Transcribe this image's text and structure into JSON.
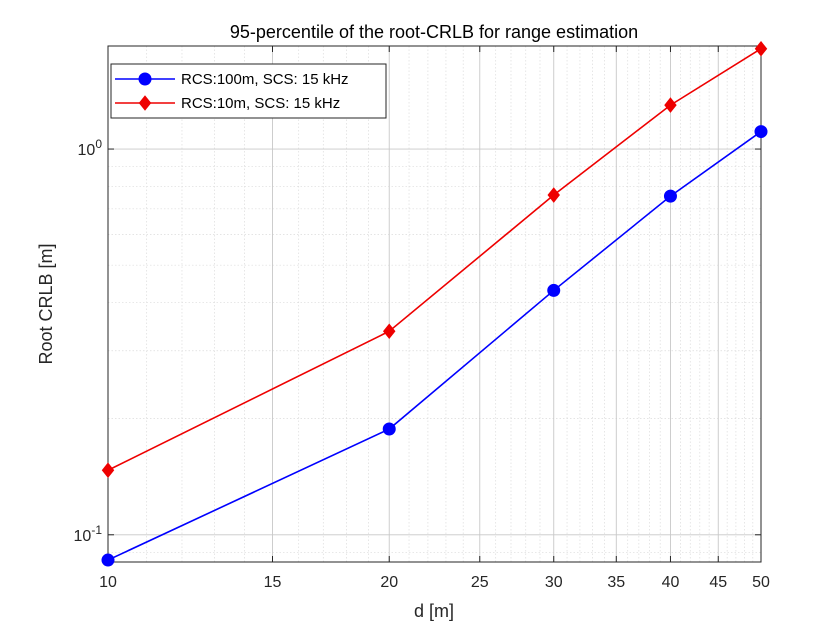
{
  "chart_data": {
    "type": "line",
    "title": "95-percentile of the root-CRLB for range estimation",
    "xlabel": "d [m]",
    "ylabel": "Root CRLB [m]",
    "xscale": "log",
    "yscale": "log",
    "xlim": [
      10,
      50
    ],
    "ylim": [
      0.085,
      1.85
    ],
    "x_ticks": [
      10,
      15,
      20,
      25,
      30,
      35,
      40,
      45,
      50
    ],
    "x_tick_labels": [
      "10",
      "15",
      "20",
      "25",
      "30",
      "35",
      "40",
      "45",
      "50"
    ],
    "y_ticks": [
      {
        "value": 0.1,
        "base": "10",
        "exp": "-1"
      },
      {
        "value": 1,
        "base": "10",
        "exp": "0"
      }
    ],
    "grid": true,
    "minor_grid": true,
    "legend_position": "top-left",
    "x": [
      10,
      20,
      30,
      40,
      50
    ],
    "series": [
      {
        "name": "RCS:100m, SCS: 15 kHz",
        "color": "#0000ff",
        "marker": "circle",
        "values": [
          0.086,
          0.188,
          0.43,
          0.755,
          1.11
        ]
      },
      {
        "name": "RCS:10m, SCS: 15 kHz",
        "color": "#ee0000",
        "marker": "diamond",
        "values": [
          0.147,
          0.337,
          0.76,
          1.3,
          1.82
        ]
      }
    ]
  }
}
